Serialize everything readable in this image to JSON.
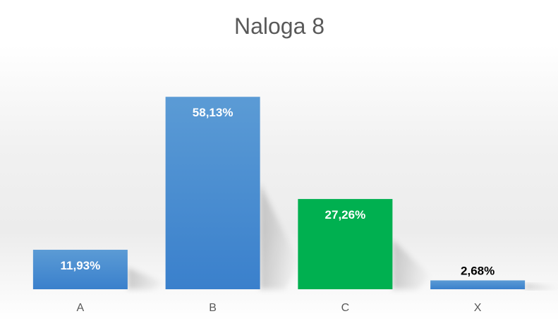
{
  "chart_data": {
    "type": "bar",
    "title": "Naloga 8",
    "xlabel": "",
    "ylabel": "",
    "categories": [
      "A",
      "B",
      "C",
      "X"
    ],
    "values": [
      11.93,
      58.13,
      27.26,
      2.68
    ],
    "data_labels": [
      "11,93%",
      "58,13%",
      "27,26%",
      "2,68%"
    ],
    "bar_colors": [
      "#4a90d9",
      "#4a90d9",
      "#00b050",
      "#4a90d9"
    ],
    "label_colors": [
      "#ffffff",
      "#ffffff",
      "#ffffff",
      "#000000"
    ],
    "label_placement": [
      "inside-top",
      "inside-top",
      "inside-top",
      "above"
    ],
    "highlighted_category": "C",
    "ylim": [
      0,
      65
    ],
    "grid": false,
    "legend": "none",
    "value_axis_visible": false
  }
}
